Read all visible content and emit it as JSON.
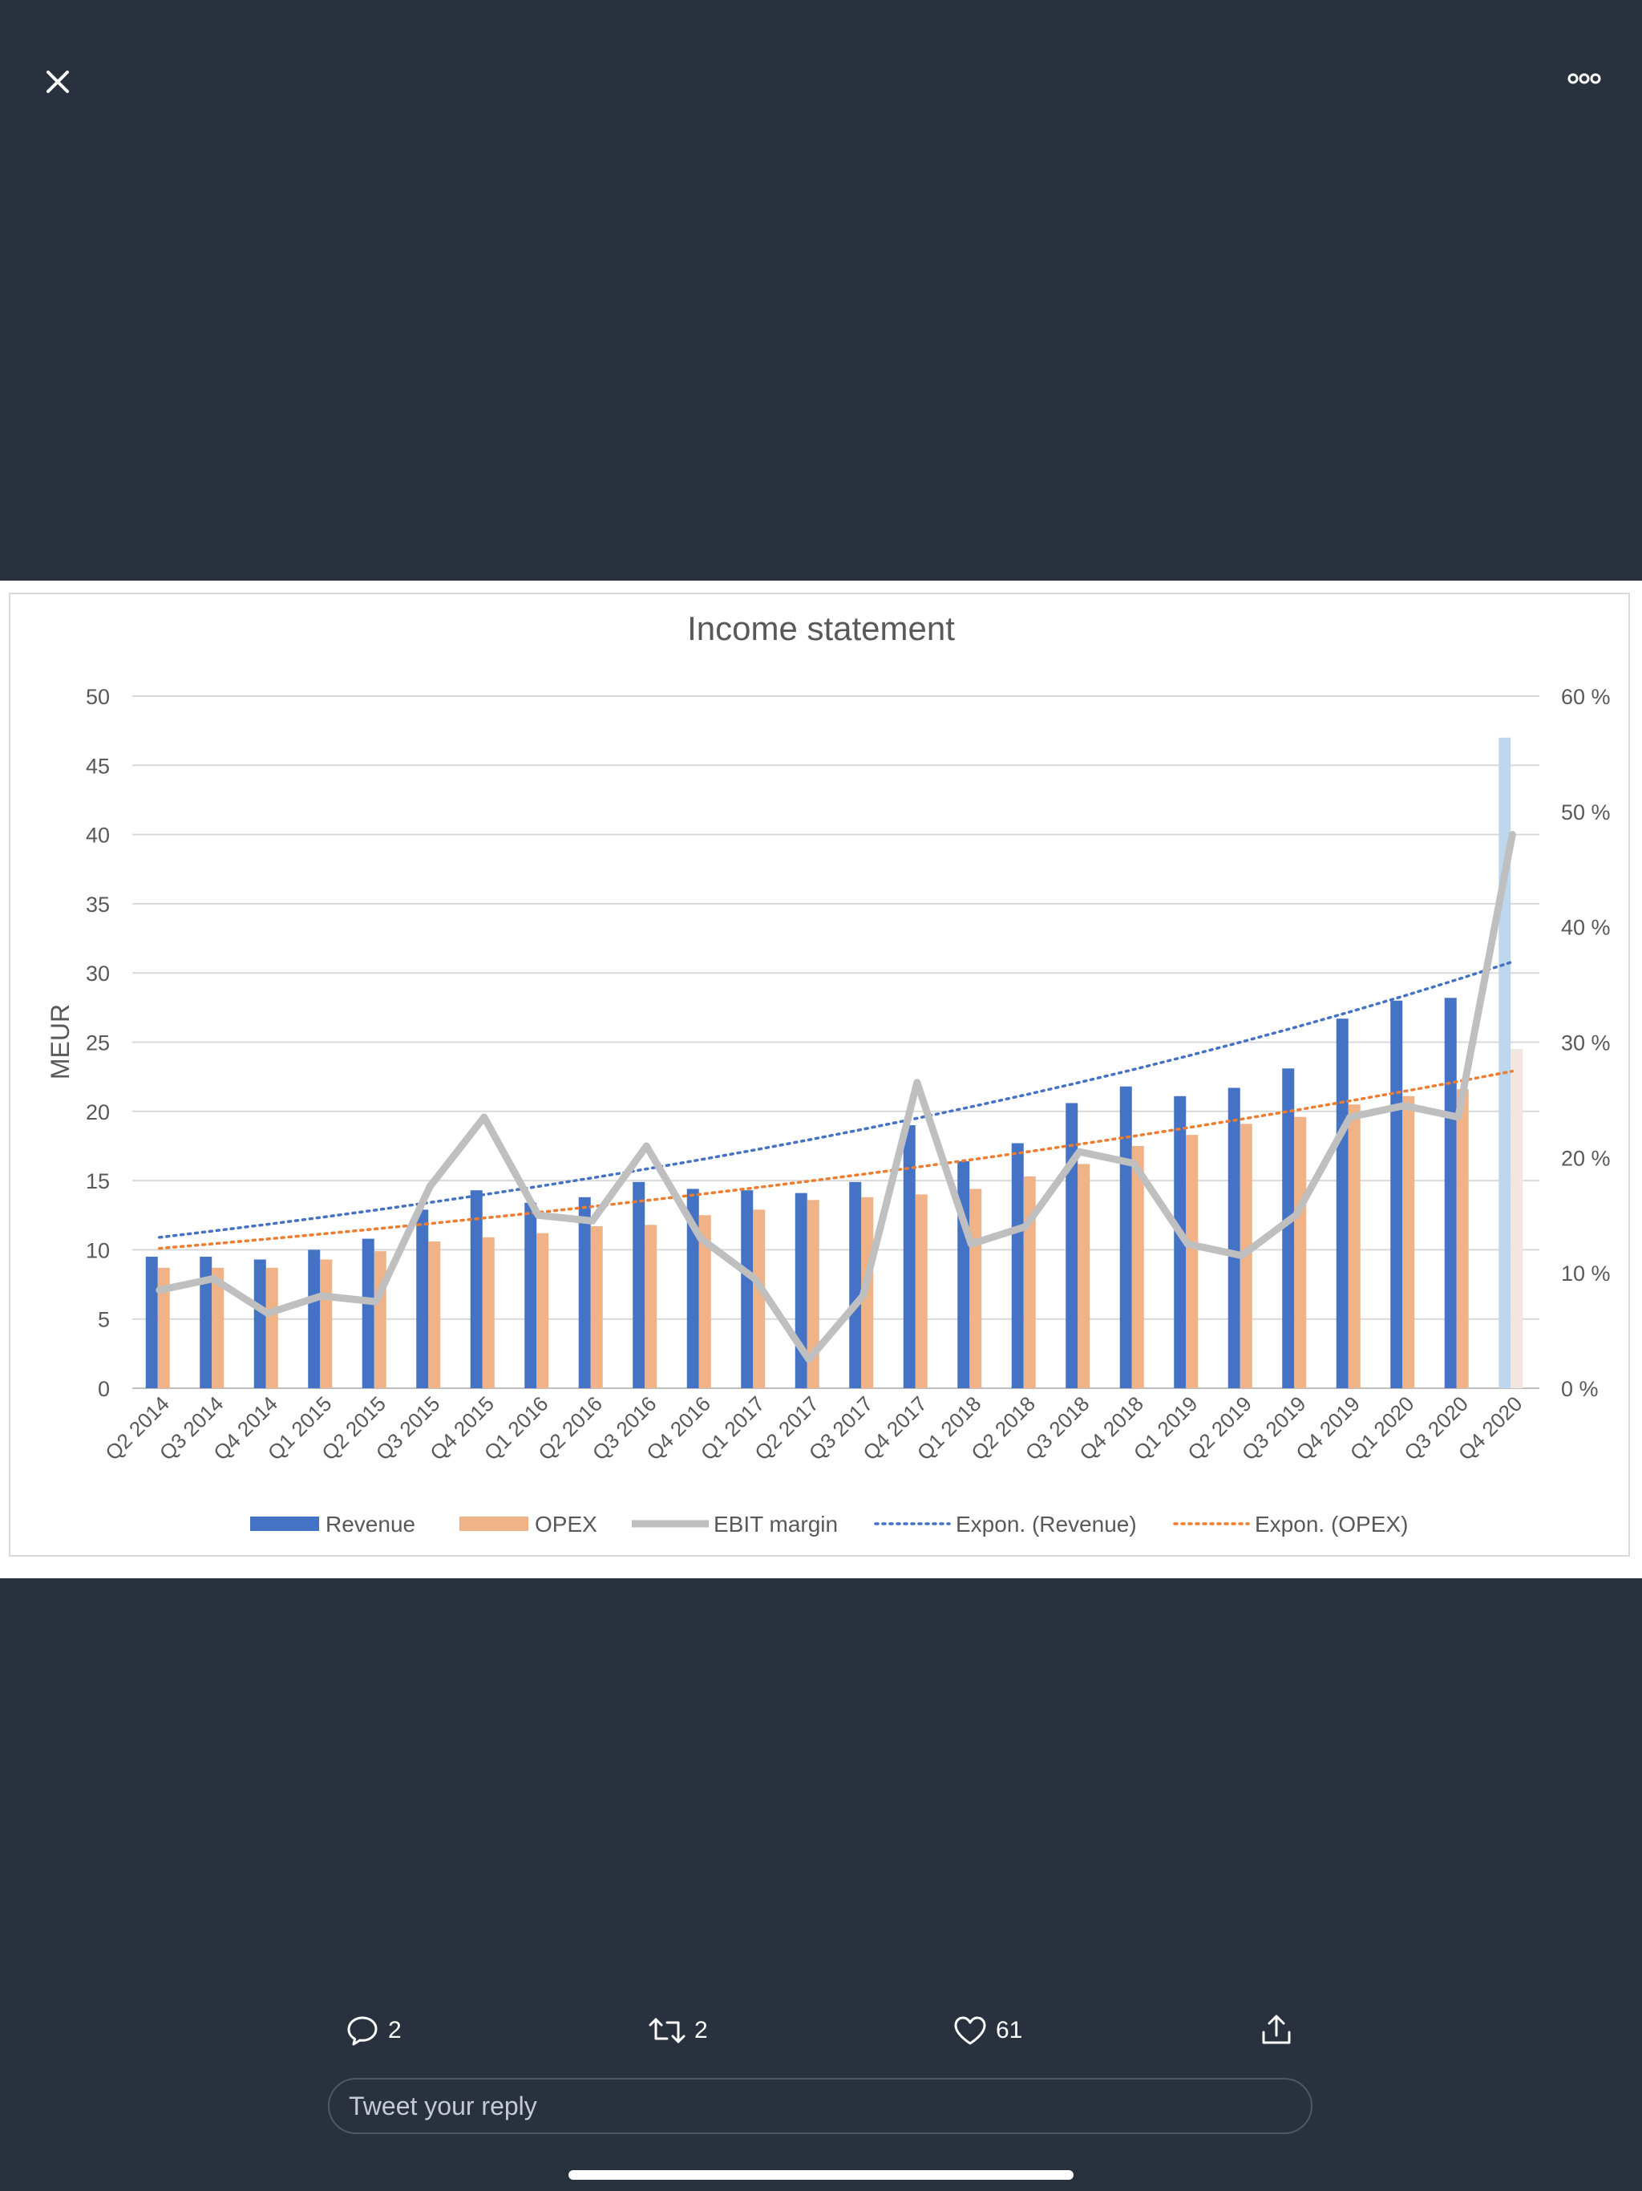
{
  "top_bar": {
    "close_icon": "close-icon",
    "more_icon": "more-options-icon"
  },
  "actions": {
    "replies": "2",
    "retweets": "2",
    "likes": "61",
    "share_icon": "share-icon"
  },
  "reply": {
    "placeholder": "Tweet your reply"
  },
  "colors": {
    "background": "#28313d",
    "revenue": "#4472c4",
    "opex": "#ed7d31",
    "ebit": "#bfbfbf",
    "forecast_revenue": "#bdd7ee",
    "forecast_opex": "#f2e6de"
  },
  "chart_data": {
    "type": "bar",
    "title": "Income statement",
    "ylabel": "MEUR",
    "ylim": [
      0,
      50
    ],
    "y2lim": [
      0,
      60
    ],
    "yticks": [
      "0",
      "5",
      "10",
      "15",
      "20",
      "25",
      "30",
      "35",
      "40",
      "45",
      "50"
    ],
    "y2ticks": [
      "0 %",
      "10 %",
      "20 %",
      "30 %",
      "40 %",
      "50 %",
      "60 %"
    ],
    "grid": true,
    "legend_position": "bottom",
    "categories": [
      "Q2 2014",
      "Q3 2014",
      "Q4 2014",
      "Q1 2015",
      "Q2 2015",
      "Q3 2015",
      "Q4 2015",
      "Q1 2016",
      "Q2 2016",
      "Q3 2016",
      "Q4 2016",
      "Q1 2017",
      "Q2 2017",
      "Q3 2017",
      "Q4 2017",
      "Q1 2018",
      "Q2 2018",
      "Q3 2018",
      "Q4 2018",
      "Q1 2019",
      "Q2 2019",
      "Q3 2019",
      "Q4 2019",
      "Q1 2020",
      "Q3 2020",
      "Q4 2020"
    ],
    "series": [
      {
        "name": "Revenue",
        "type": "bar",
        "axis": "left",
        "values": [
          9.5,
          9.5,
          9.3,
          10.0,
          10.8,
          12.9,
          14.3,
          13.4,
          13.8,
          14.9,
          14.4,
          14.3,
          14.1,
          14.9,
          19.0,
          16.4,
          17.7,
          20.6,
          21.8,
          21.1,
          21.7,
          23.1,
          26.7,
          28.0,
          28.2,
          47.0
        ]
      },
      {
        "name": "OPEX",
        "type": "bar",
        "axis": "left",
        "values": [
          8.7,
          8.7,
          8.7,
          9.3,
          9.9,
          10.6,
          10.9,
          11.2,
          11.7,
          11.8,
          12.5,
          12.9,
          13.6,
          13.8,
          14.0,
          14.4,
          15.3,
          16.2,
          17.5,
          18.3,
          19.1,
          19.6,
          20.5,
          21.1,
          21.6,
          24.5
        ]
      },
      {
        "name": "EBIT margin",
        "type": "line",
        "axis": "right",
        "unit": "%",
        "values": [
          8.5,
          9.5,
          6.5,
          8.0,
          7.5,
          17.5,
          23.5,
          15.0,
          14.5,
          21.0,
          13.0,
          9.5,
          2.5,
          8.0,
          26.5,
          12.5,
          14.0,
          20.5,
          19.5,
          12.5,
          11.5,
          15.0,
          23.5,
          24.5,
          23.5,
          48.0
        ]
      },
      {
        "name": "Expon. (Revenue)",
        "type": "trendline",
        "axis": "left",
        "start": 10.9,
        "end": 30.8
      },
      {
        "name": "Expon. (OPEX)",
        "type": "trendline",
        "axis": "left",
        "start": 10.1,
        "end": 22.9
      }
    ],
    "highlighted_category": "Q4 2020"
  }
}
